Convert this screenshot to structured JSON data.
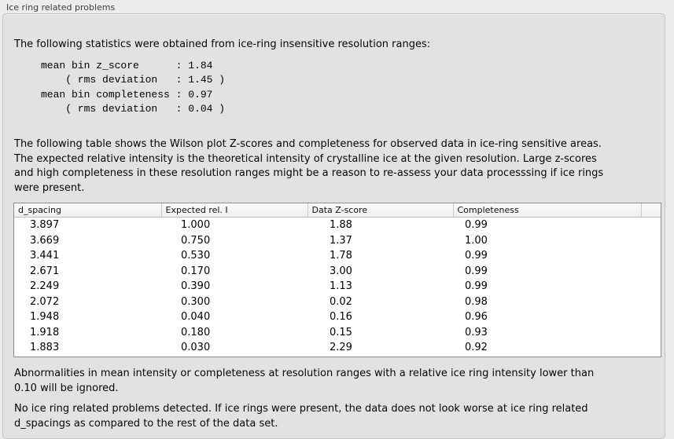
{
  "panel": {
    "title": "Ice ring related problems"
  },
  "intro": "The following statistics were obtained from ice-ring insensitive resolution ranges:",
  "stats": {
    "lines": [
      "mean bin z_score      : 1.84",
      "    ( rms deviation   : 1.45 )",
      "mean bin completeness : 0.97",
      "    ( rms deviation   : 0.04 )"
    ],
    "mean_bin_z_score": "1.84",
    "z_score_rms_deviation": "1.45",
    "mean_bin_completeness": "0.97",
    "completeness_rms_deviation": "0.04"
  },
  "table_description": "The following table shows the Wilson plot Z-scores and completeness for observed data in ice-ring sensitive areas.\nThe expected relative intensity is the theoretical intensity of crystalline ice at the given resolution. Large z-scores\nand high completeness in these resolution ranges might be a reason to re-assess your data processsing if ice rings\nwere present.",
  "table": {
    "columns": [
      "d_spacing",
      "Expected rel. I",
      "Data Z-score",
      "Completeness"
    ],
    "rows": [
      [
        "3.897",
        "1.000",
        "1.88",
        "0.99"
      ],
      [
        "3.669",
        "0.750",
        "1.37",
        "1.00"
      ],
      [
        "3.441",
        "0.530",
        "1.78",
        "0.99"
      ],
      [
        "2.671",
        "0.170",
        "3.00",
        "0.99"
      ],
      [
        "2.249",
        "0.390",
        "1.13",
        "0.99"
      ],
      [
        "2.072",
        "0.300",
        "0.02",
        "0.98"
      ],
      [
        "1.948",
        "0.040",
        "0.16",
        "0.96"
      ],
      [
        "1.918",
        "0.180",
        "0.15",
        "0.93"
      ],
      [
        "1.883",
        "0.030",
        "2.29",
        "0.92"
      ]
    ]
  },
  "ignore_note": "Abnormalities in mean intensity or completeness at resolution ranges with a relative ice ring intensity lower than\n0.10 will be ignored.",
  "conclusion": "No ice ring related problems detected. If ice rings were present, the data does not look worse at ice ring related\nd_spacings as compared to the rest of the data set."
}
